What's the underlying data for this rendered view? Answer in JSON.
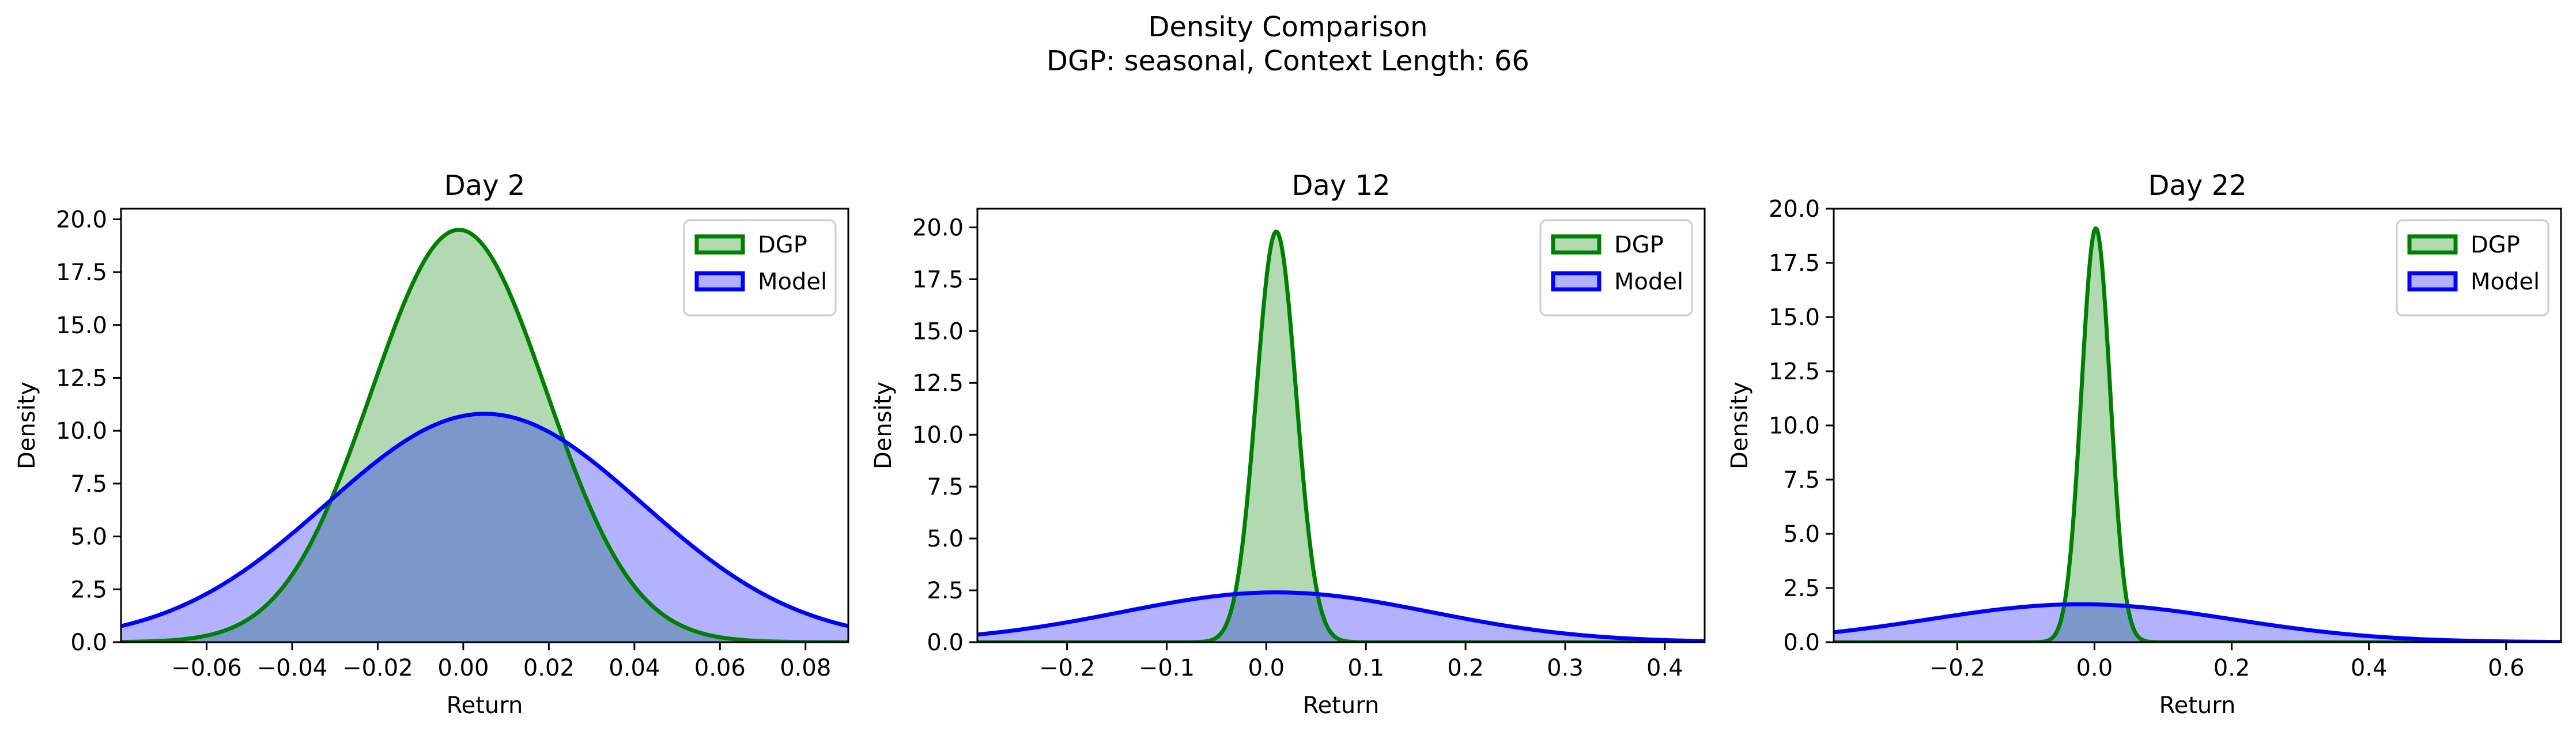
{
  "figure": {
    "title_line1": "Density Comparison",
    "title_line2": "DGP: seasonal, Context Length: 66"
  },
  "colors": {
    "dgp_line": "#008000",
    "dgp_fill": "#b3d9b3",
    "model_line": "#0000ff",
    "model_fill": "#b3b3ff",
    "overlap_fill": "#7f99c9"
  },
  "chart_data": [
    {
      "type": "area",
      "title": "Day 2",
      "xlabel": "Return",
      "ylabel": "Density",
      "xlim": [
        -0.08,
        0.09
      ],
      "ylim": [
        0,
        20.5
      ],
      "xticks": [
        -0.06,
        -0.04,
        -0.02,
        0.0,
        0.02,
        0.04,
        0.06,
        0.08
      ],
      "xtick_labels": [
        "−0.06",
        "−0.04",
        "−0.02",
        "0.00",
        "0.02",
        "0.04",
        "0.06",
        "0.08"
      ],
      "yticks": [
        0,
        2.5,
        5,
        7.5,
        10,
        12.5,
        15,
        17.5,
        20
      ],
      "ytick_labels": [
        "0.0",
        "2.5",
        "5.0",
        "7.5",
        "10.0",
        "12.5",
        "15.0",
        "17.5",
        "20.0"
      ],
      "legend": {
        "position": "top-right",
        "entries": [
          "DGP",
          "Model"
        ]
      },
      "series": [
        {
          "name": "DGP",
          "distribution": "normal",
          "mean": -0.001,
          "std": 0.0205,
          "peak": 19.5
        },
        {
          "name": "Model",
          "distribution": "normal",
          "mean": 0.005,
          "std": 0.0369,
          "peak": 10.8
        }
      ]
    },
    {
      "type": "area",
      "title": "Day 12",
      "xlabel": "Return",
      "ylabel": "Density",
      "xlim": [
        -0.29,
        0.44
      ],
      "ylim": [
        0,
        20.9
      ],
      "xticks": [
        -0.2,
        -0.1,
        0.0,
        0.1,
        0.2,
        0.3,
        0.4
      ],
      "xtick_labels": [
        "−0.2",
        "−0.1",
        "0.0",
        "0.1",
        "0.2",
        "0.3",
        "0.4"
      ],
      "yticks": [
        0,
        2.5,
        5,
        7.5,
        10,
        12.5,
        15,
        17.5,
        20
      ],
      "ytick_labels": [
        "0.0",
        "2.5",
        "5.0",
        "7.5",
        "10.0",
        "12.5",
        "15.0",
        "17.5",
        "20.0"
      ],
      "legend": {
        "position": "top-right",
        "entries": [
          "DGP",
          "Model"
        ]
      },
      "series": [
        {
          "name": "DGP",
          "distribution": "normal",
          "mean": 0.01,
          "std": 0.02,
          "peak": 19.8
        },
        {
          "name": "Model",
          "distribution": "normal",
          "mean": 0.01,
          "std": 0.155,
          "peak": 2.4
        }
      ]
    },
    {
      "type": "area",
      "title": "Day 22",
      "xlabel": "Return",
      "ylabel": "Density",
      "xlim": [
        -0.38,
        0.68
      ],
      "ylim": [
        0,
        20.0
      ],
      "xticks": [
        -0.2,
        0.0,
        0.2,
        0.4,
        0.6
      ],
      "xtick_labels": [
        "−0.2",
        "0.0",
        "0.2",
        "0.4",
        "0.6"
      ],
      "yticks": [
        0,
        2.5,
        5,
        7.5,
        10,
        12.5,
        15,
        17.5,
        20
      ],
      "ytick_labels": [
        "0.0",
        "2.5",
        "5.0",
        "7.5",
        "10.0",
        "12.5",
        "15.0",
        "17.5",
        "20.0"
      ],
      "legend": {
        "position": "top-right",
        "entries": [
          "DGP",
          "Model"
        ]
      },
      "series": [
        {
          "name": "DGP",
          "distribution": "normal",
          "mean": 0.002,
          "std": 0.021,
          "peak": 19.1
        },
        {
          "name": "Model",
          "distribution": "normal",
          "mean": -0.02,
          "std": 0.22,
          "peak": 1.75
        }
      ]
    }
  ]
}
